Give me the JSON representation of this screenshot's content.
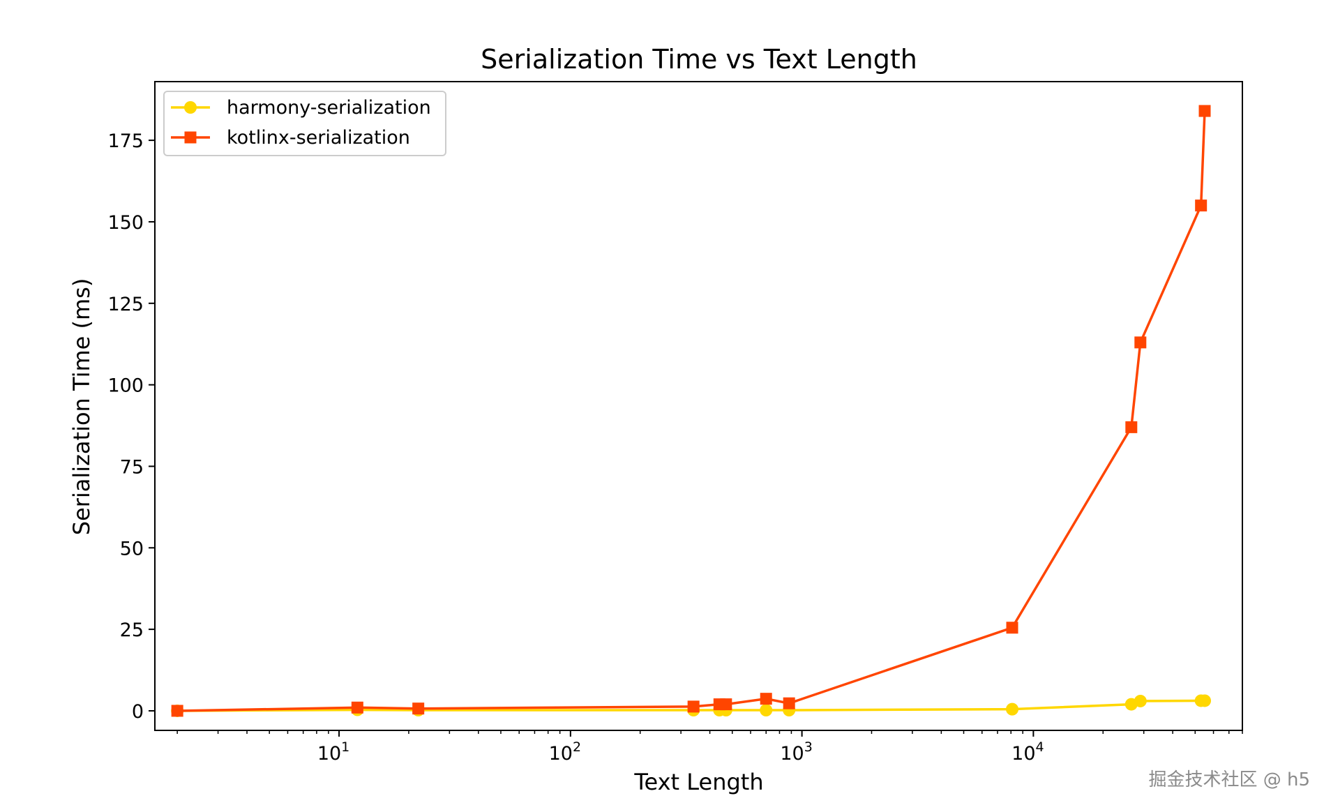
{
  "chart_data": {
    "type": "line",
    "title": "Serialization Time vs Text Length",
    "xlabel": "Text Length",
    "ylabel": "Serialization Time (ms)",
    "xscale": "log",
    "xlim": [
      1.6,
      80000
    ],
    "ylim": [
      -6,
      193
    ],
    "yticks": [
      0,
      25,
      50,
      75,
      100,
      125,
      150,
      175
    ],
    "xticks": [
      {
        "value": 10,
        "base": "10",
        "exp": "1"
      },
      {
        "value": 100,
        "base": "10",
        "exp": "2"
      },
      {
        "value": 1000,
        "base": "10",
        "exp": "3"
      },
      {
        "value": 10000,
        "base": "10",
        "exp": "4"
      }
    ],
    "grid": false,
    "legend_position": "top-left",
    "series": [
      {
        "name": "harmony-serialization",
        "color": "#FFD700",
        "marker": "circle",
        "x": [
          2,
          12,
          22,
          340,
          440,
          470,
          700,
          880,
          8100,
          26500,
          29000,
          53000,
          55000
        ],
        "y": [
          0,
          0.3,
          0.2,
          0.2,
          0.2,
          0.2,
          0.2,
          0.2,
          0.5,
          2,
          3,
          3.1,
          3.1
        ]
      },
      {
        "name": "kotlinx-serialization",
        "color": "#FF4500",
        "marker": "square",
        "x": [
          2,
          12,
          22,
          340,
          440,
          470,
          700,
          880,
          8100,
          26500,
          29000,
          53000,
          55000
        ],
        "y": [
          0,
          1,
          0.7,
          1.3,
          2,
          2,
          3.7,
          2.3,
          25.5,
          87,
          113,
          155,
          184
        ]
      }
    ]
  },
  "watermark": "掘金技术社区 @ h5"
}
